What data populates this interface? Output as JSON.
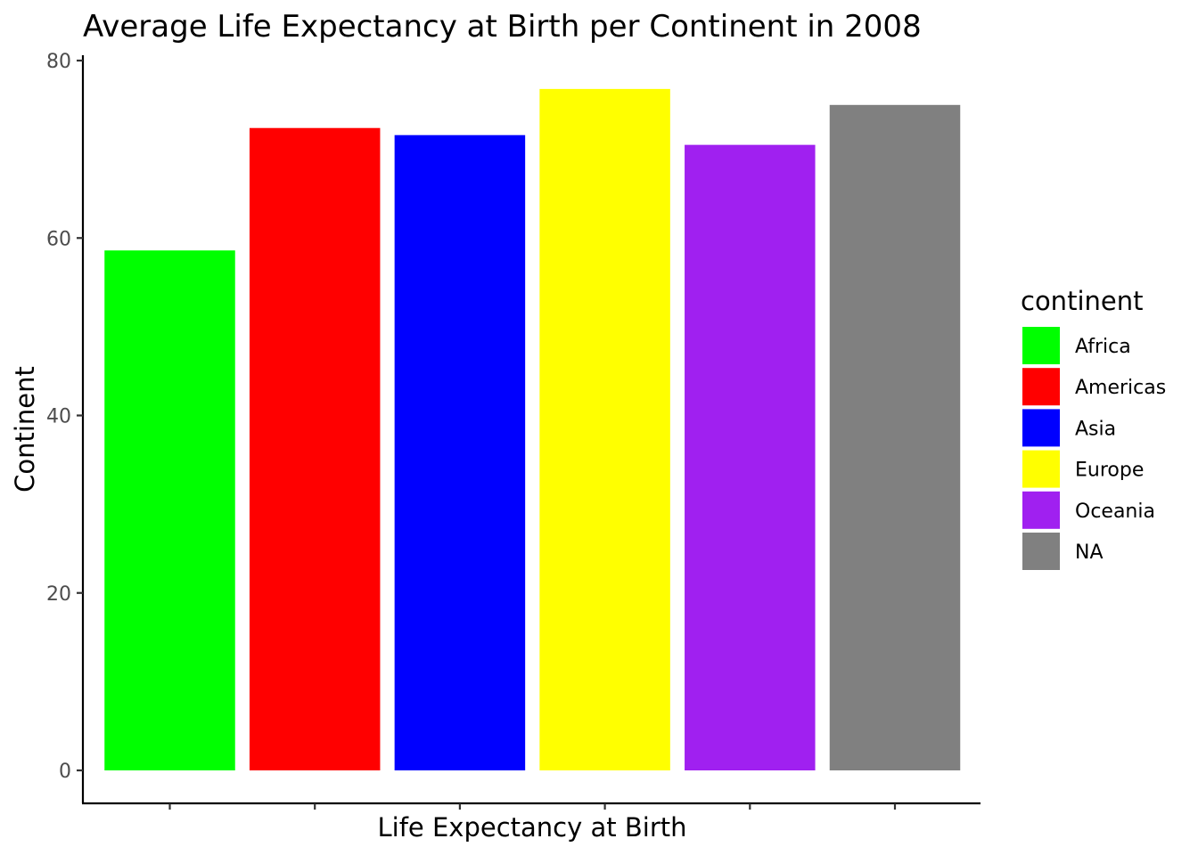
{
  "chart_data": {
    "type": "bar",
    "title": "Average Life Expectancy at Birth per Continent in 2008",
    "xlabel": "Life Expectancy at Birth",
    "ylabel": "Continent",
    "categories": [
      "Africa",
      "Americas",
      "Asia",
      "Europe",
      "Oceania",
      "NA"
    ],
    "values": [
      58.6,
      72.4,
      71.6,
      76.8,
      70.5,
      75.0
    ],
    "colors": [
      "#00FF00",
      "#FF0000",
      "#0000FF",
      "#FFFF00",
      "#A020F0",
      "#808080"
    ],
    "ylim": [
      0,
      80
    ],
    "y_ticks": [
      0,
      20,
      40,
      60,
      80
    ],
    "x_tick_labels_shown": false,
    "grid": false,
    "legend": {
      "title": "continent",
      "placement": "right",
      "entries": [
        "Africa",
        "Americas",
        "Asia",
        "Europe",
        "Oceania",
        "NA"
      ]
    }
  }
}
